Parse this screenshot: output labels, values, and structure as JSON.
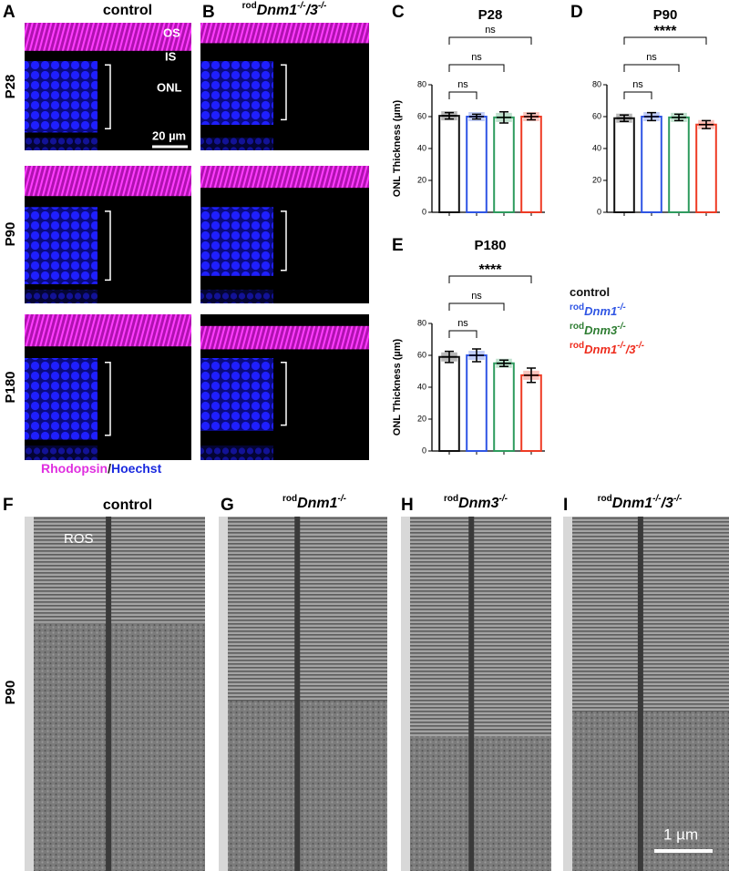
{
  "figure": {
    "panel_labels": [
      "A",
      "B",
      "C",
      "D",
      "E",
      "F",
      "G",
      "H",
      "I"
    ],
    "a_title": "control",
    "b_title": [
      "rod",
      "Dnm1",
      "-/-",
      "/3",
      "-/-"
    ],
    "image_labels": {
      "os": "OS",
      "is": "IS",
      "onl": "ONL",
      "scale_a": "20 µm",
      "ros": "ROS",
      "scale_i": "1 µm"
    },
    "row_labels": [
      "P28",
      "P90",
      "P180"
    ],
    "stain": [
      "Rhodopsin",
      "/",
      "Hoechst"
    ],
    "f_title": "control",
    "g_title": [
      "rod",
      "Dnm1",
      "-/-"
    ],
    "h_title": [
      "rod",
      "Dnm3",
      "-/-"
    ],
    "i_title": [
      "rod",
      "Dnm1",
      "-/-",
      "/3",
      "-/-"
    ],
    "em_row_label": "P90",
    "legend": [
      {
        "label": [
          "control"
        ],
        "color": "#111111"
      },
      {
        "label": [
          "rod",
          "Dnm1",
          "-/-"
        ],
        "color": "#2f55e4"
      },
      {
        "label": [
          "rod",
          "Dnm3",
          "-/-"
        ],
        "color": "#2e7d32"
      },
      {
        "label": [
          "rod",
          "Dnm1",
          "-/-",
          "/3",
          "-/-"
        ],
        "color": "#ee2b1c"
      }
    ]
  },
  "chart_data": [
    {
      "type": "bar",
      "title": "P28",
      "ylabel": "ONL Thickness (µm)",
      "categories": [
        null,
        null,
        null,
        null
      ],
      "values": [
        60.5,
        60,
        59.5,
        60
      ],
      "errors": [
        2,
        1.5,
        3.5,
        2
      ],
      "colors": [
        "#111111",
        "#2f55e4",
        "#2e9b5e",
        "#ee3b24"
      ],
      "ylim": [
        0,
        80
      ],
      "yticks": [
        0,
        20,
        40,
        60,
        80
      ],
      "annotations": [
        "ns",
        "ns",
        "ns"
      ]
    },
    {
      "type": "bar",
      "title": "P90",
      "categories": [
        null,
        null,
        null,
        null
      ],
      "values": [
        59,
        60,
        59.5,
        55
      ],
      "errors": [
        2,
        2.5,
        2,
        2.5
      ],
      "colors": [
        "#111111",
        "#2f55e4",
        "#2e9b5e",
        "#ee3b24"
      ],
      "ylim": [
        0,
        80
      ],
      "yticks": [
        0,
        20,
        40,
        60,
        80
      ],
      "annotations": [
        "ns",
        "ns",
        "****"
      ]
    },
    {
      "type": "bar",
      "title": "P180",
      "ylabel": "ONL Thickness (µm)",
      "categories": [
        null,
        null,
        null,
        null
      ],
      "values": [
        59,
        60,
        55,
        47.5
      ],
      "errors": [
        3.5,
        4,
        2,
        4.5
      ],
      "colors": [
        "#111111",
        "#2f55e4",
        "#2e9b5e",
        "#ee3b24"
      ],
      "ylim": [
        0,
        80
      ],
      "yticks": [
        0,
        20,
        40,
        60,
        80
      ],
      "annotations": [
        "ns",
        "ns",
        "****"
      ]
    }
  ]
}
